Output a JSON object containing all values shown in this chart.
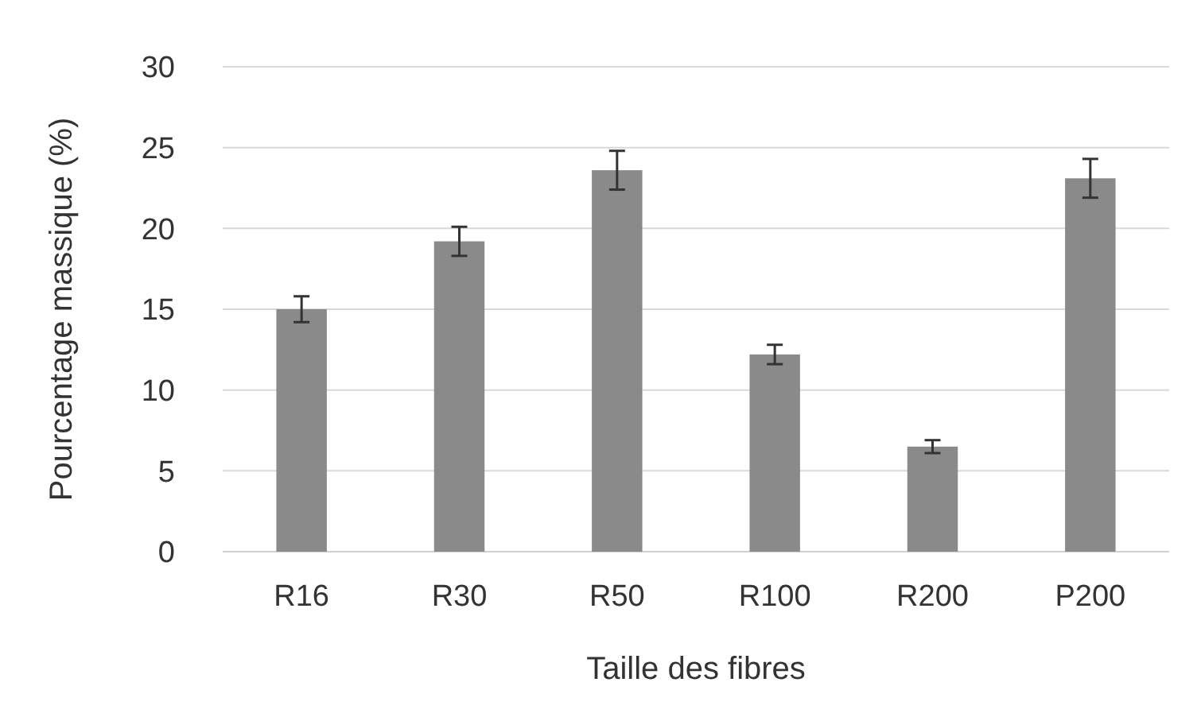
{
  "chart_data": {
    "type": "bar",
    "xlabel": "Taille des fibres",
    "ylabel": "Pourcentage massique (%)",
    "categories": [
      "R16",
      "R30",
      "R50",
      "R100",
      "R200",
      "P200"
    ],
    "values": [
      15.0,
      19.2,
      23.6,
      12.2,
      6.5,
      23.1
    ],
    "errors": [
      0.8,
      0.9,
      1.2,
      0.6,
      0.4,
      1.2
    ],
    "color": "#8a8a8a",
    "ylim": [
      0,
      30
    ],
    "yticks": [
      0,
      5,
      10,
      15,
      20,
      25,
      30
    ],
    "grid": "y"
  }
}
